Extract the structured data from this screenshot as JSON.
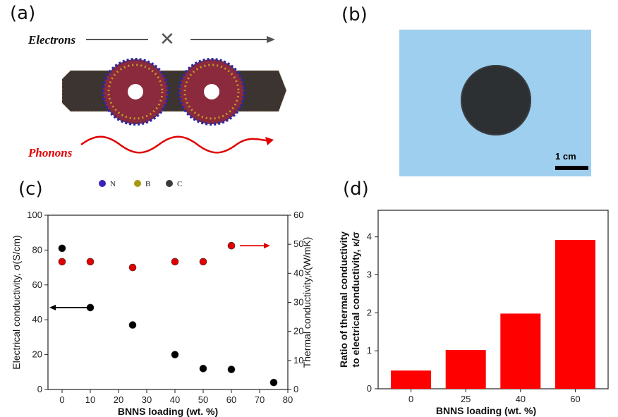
{
  "panels": {
    "a": "(a)",
    "b": "(b)",
    "c": "(c)",
    "d": "(d)"
  },
  "schematic": {
    "electrons_label": "Electrons",
    "phonons_label": "Phonons",
    "cross_mark": "✕",
    "legend": [
      {
        "symbol": "N",
        "color": "#3b22b8"
      },
      {
        "symbol": "B",
        "color": "#a89a10"
      },
      {
        "symbol": "C",
        "color": "#3a3a3a"
      }
    ]
  },
  "photo": {
    "scale_label": "1 cm"
  },
  "chart_data": [
    {
      "type": "scatter",
      "panel": "c",
      "xlabel": "BNNS loading (wt. %)",
      "ylabel": "Electrical conductivity, σ(S/cm)",
      "ylabel_right": "Thermal conductivity,κ(W/mK)",
      "xlim": [
        -5,
        80
      ],
      "ylim": [
        0,
        100
      ],
      "ylim_right": [
        0,
        60
      ],
      "x_ticks": [
        0,
        10,
        20,
        30,
        40,
        50,
        60,
        70,
        80
      ],
      "y_ticks": [
        0,
        20,
        40,
        60,
        80,
        100
      ],
      "y_ticks_right": [
        0,
        10,
        20,
        30,
        40,
        50,
        60
      ],
      "series": [
        {
          "axis": "left",
          "color": "#000000",
          "x": [
            0,
            10,
            25,
            40,
            50,
            60,
            75
          ],
          "y": [
            81,
            47,
            37,
            20,
            12,
            11.5,
            4
          ]
        },
        {
          "axis": "right",
          "color": "#e00000",
          "x": [
            0,
            10,
            25,
            40,
            50,
            60
          ],
          "y": [
            44,
            44,
            42,
            44,
            44,
            49.5
          ]
        }
      ]
    },
    {
      "type": "bar",
      "panel": "d",
      "xlabel": "BNNS loading (wt. %)",
      "ylabel_line1": "Ratio of thermal conductivity",
      "ylabel_line2": "to electrical conductivity, κ/σ",
      "categories": [
        "0",
        "25",
        "40",
        "60"
      ],
      "values": [
        0.48,
        1.02,
        1.98,
        3.92
      ],
      "ylim": [
        0,
        4.7
      ],
      "y_ticks": [
        0,
        1,
        2,
        3,
        4
      ],
      "color": "#ff0000"
    }
  ]
}
